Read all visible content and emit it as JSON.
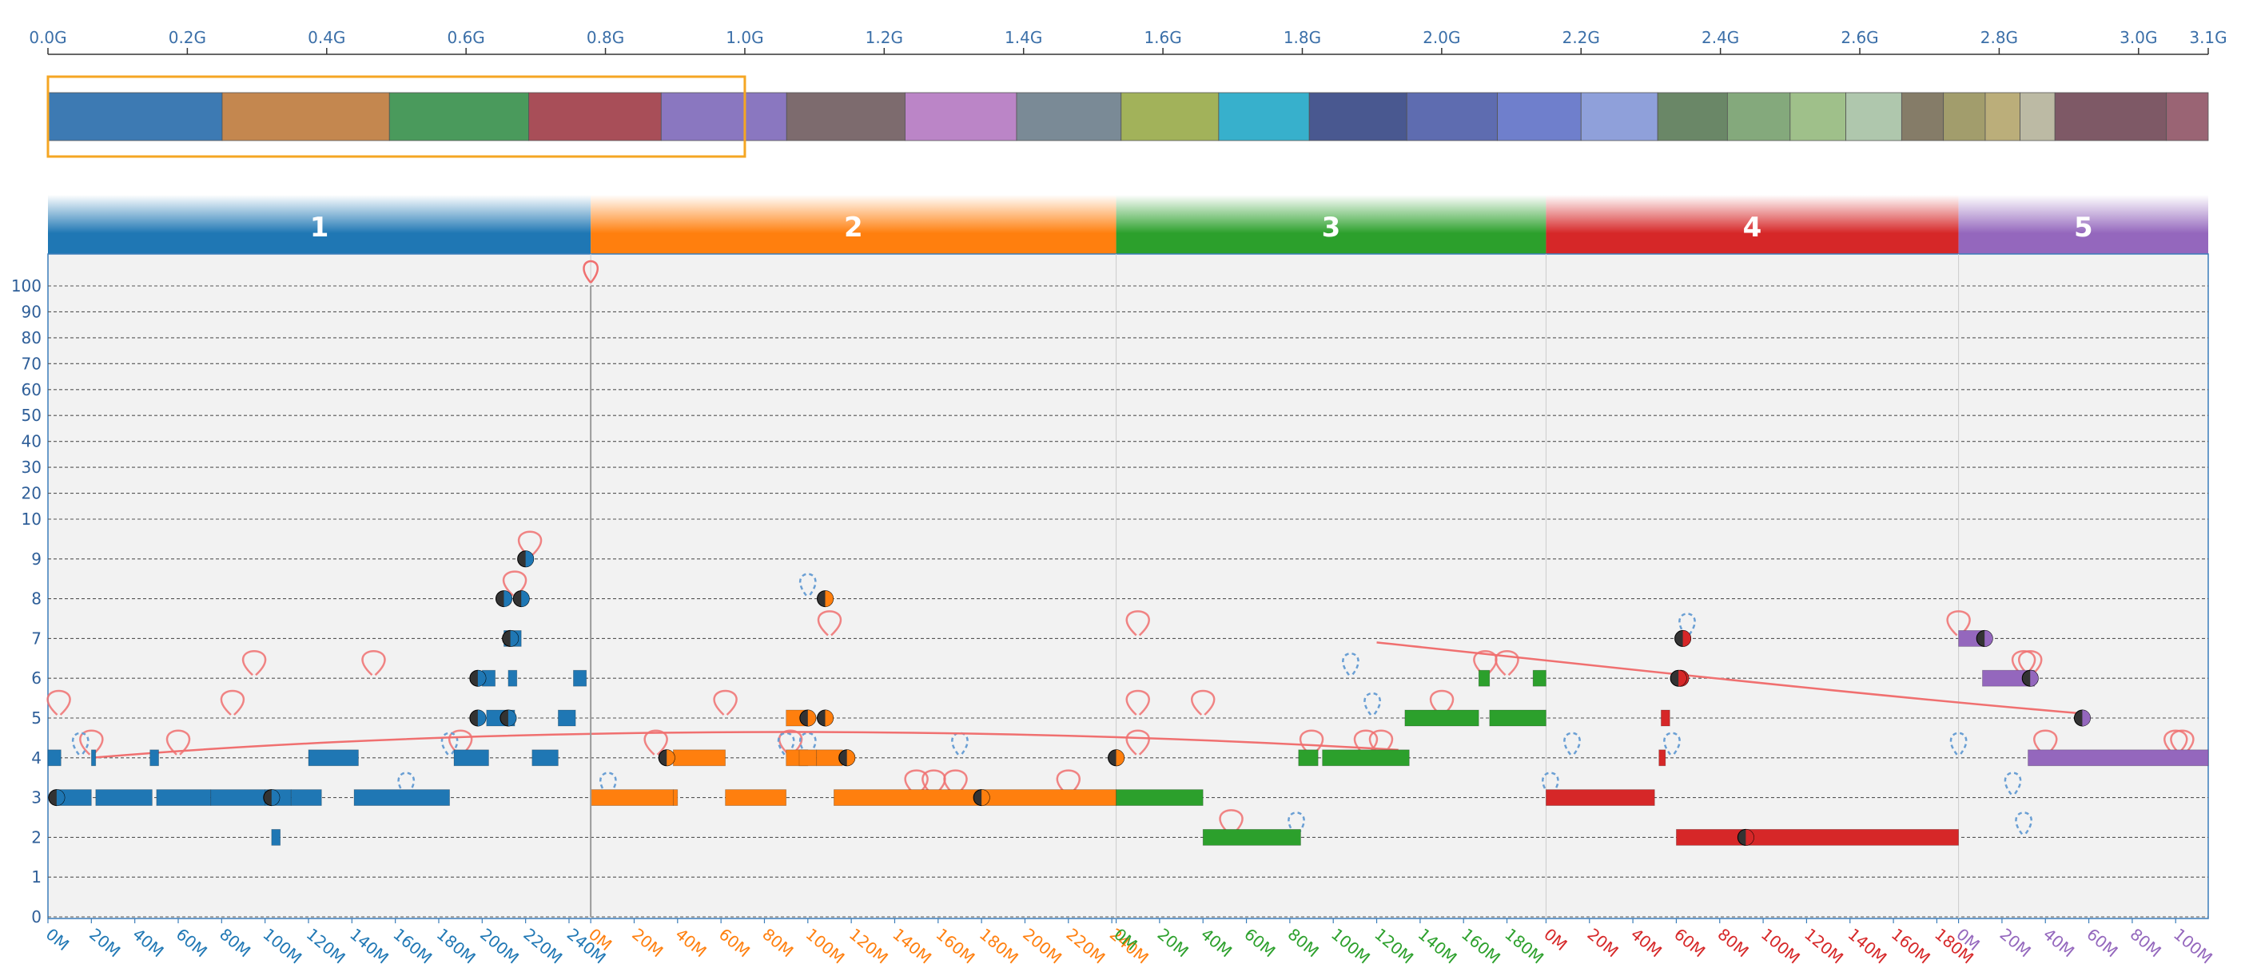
{
  "overview": {
    "ticks": [
      "0.0G",
      "0.2G",
      "0.4G",
      "0.6G",
      "0.8G",
      "1.0G",
      "1.2G",
      "1.4G",
      "1.6G",
      "1.8G",
      "2.0G",
      "2.2G",
      "2.4G",
      "2.6G",
      "2.8G",
      "3.0G",
      "3.1G"
    ],
    "tick_values": [
      0.0,
      0.2,
      0.4,
      0.6,
      0.8,
      1.0,
      1.2,
      1.4,
      1.6,
      1.8,
      2.0,
      2.2,
      2.4,
      2.6,
      2.8,
      3.0,
      3.1
    ],
    "axis_max_g": 3.1,
    "selection_g": [
      0.0,
      1.0
    ],
    "selection_color": "#f5a623",
    "blocks_g": [
      [
        0.0,
        0.25,
        "#3d7ab3"
      ],
      [
        0.25,
        0.49,
        "#c4874f"
      ],
      [
        0.49,
        0.69,
        "#4a9a5c"
      ],
      [
        0.69,
        0.88,
        "#a84e58"
      ],
      [
        0.88,
        1.06,
        "#8a77c0"
      ],
      [
        1.06,
        1.23,
        "#7d6b6e"
      ],
      [
        1.23,
        1.39,
        "#bb85c7"
      ],
      [
        1.39,
        1.54,
        "#7a8a96"
      ],
      [
        1.54,
        1.68,
        "#a2b25a"
      ],
      [
        1.68,
        1.81,
        "#37b0cc"
      ],
      [
        1.81,
        1.95,
        "#495890"
      ],
      [
        1.95,
        2.08,
        "#5e6cb0"
      ],
      [
        2.08,
        2.2,
        "#6f7fcc"
      ],
      [
        2.2,
        2.31,
        "#8fa0da"
      ],
      [
        2.31,
        2.41,
        "#6a8767"
      ],
      [
        2.41,
        2.5,
        "#84a97c"
      ],
      [
        2.5,
        2.58,
        "#9fc08a"
      ],
      [
        2.58,
        2.66,
        "#afc7ad"
      ],
      [
        2.66,
        2.72,
        "#857c68"
      ],
      [
        2.72,
        2.78,
        "#a29d6c"
      ],
      [
        2.78,
        2.83,
        "#bbae7a"
      ],
      [
        2.83,
        2.88,
        "#bcbaa4"
      ],
      [
        2.88,
        3.04,
        "#7e5966"
      ],
      [
        3.04,
        3.1,
        "#9a6474"
      ]
    ]
  },
  "chromosomes": [
    {
      "label": "1",
      "color": "#1f77b4",
      "length_m": 250,
      "ticks": [
        "0M",
        "20M",
        "40M",
        "60M",
        "80M",
        "100M",
        "120M",
        "140M",
        "160M",
        "180M",
        "200M",
        "220M",
        "240M"
      ]
    },
    {
      "label": "2",
      "color": "#ff7f0e",
      "length_m": 242,
      "ticks": [
        "0M",
        "20M",
        "40M",
        "60M",
        "80M",
        "100M",
        "120M",
        "140M",
        "160M",
        "180M",
        "200M",
        "220M",
        "240M"
      ]
    },
    {
      "label": "3",
      "color": "#2ca02c",
      "length_m": 198,
      "ticks": [
        "0M",
        "20M",
        "40M",
        "60M",
        "80M",
        "100M",
        "120M",
        "140M",
        "160M",
        "180M"
      ]
    },
    {
      "label": "4",
      "color": "#d62728",
      "length_m": 190,
      "ticks": [
        "0M",
        "20M",
        "40M",
        "60M",
        "80M",
        "100M",
        "120M",
        "140M",
        "160M",
        "180M"
      ]
    },
    {
      "label": "5",
      "color": "#9467bd",
      "length_m": 115,
      "ticks": [
        "0M",
        "20M",
        "40M",
        "60M",
        "80M",
        "100M"
      ]
    }
  ],
  "chart_data": {
    "type": "scatter",
    "description_type": "copy-number segments with structural variant arcs",
    "y_ticks": [
      "0",
      "1",
      "2",
      "3",
      "4",
      "5",
      "6",
      "7",
      "8",
      "9",
      "10",
      "20",
      "30",
      "40",
      "50",
      "60",
      "70",
      "80",
      "90",
      "100"
    ],
    "y_scale": "linear 0-9, log-like 10-100",
    "x_axis": "genomic position per chromosome (Mb)",
    "grid": true,
    "segments": [
      {
        "chr": 0,
        "start": 0,
        "end": 6,
        "cn": 4
      },
      {
        "chr": 0,
        "start": 20,
        "end": 22,
        "cn": 4
      },
      {
        "chr": 0,
        "start": 4,
        "end": 20,
        "cn": 3
      },
      {
        "chr": 0,
        "start": 22,
        "end": 48,
        "cn": 3
      },
      {
        "chr": 0,
        "start": 47,
        "end": 51,
        "cn": 4
      },
      {
        "chr": 0,
        "start": 50,
        "end": 75,
        "cn": 3
      },
      {
        "chr": 0,
        "start": 75,
        "end": 100,
        "cn": 3
      },
      {
        "chr": 0,
        "start": 100,
        "end": 112,
        "cn": 3
      },
      {
        "chr": 0,
        "start": 103,
        "end": 107,
        "cn": 2
      },
      {
        "chr": 0,
        "start": 112,
        "end": 126,
        "cn": 3
      },
      {
        "chr": 0,
        "start": 120,
        "end": 143,
        "cn": 4
      },
      {
        "chr": 0,
        "start": 141,
        "end": 185,
        "cn": 3
      },
      {
        "chr": 0,
        "start": 187,
        "end": 203,
        "cn": 4
      },
      {
        "chr": 0,
        "start": 202,
        "end": 215,
        "cn": 5
      },
      {
        "chr": 0,
        "start": 200,
        "end": 206,
        "cn": 6
      },
      {
        "chr": 0,
        "start": 212,
        "end": 216,
        "cn": 6
      },
      {
        "chr": 0,
        "start": 210,
        "end": 218,
        "cn": 7
      },
      {
        "chr": 0,
        "start": 223,
        "end": 235,
        "cn": 4
      },
      {
        "chr": 0,
        "start": 235,
        "end": 243,
        "cn": 5
      },
      {
        "chr": 0,
        "start": 242,
        "end": 248,
        "cn": 6
      },
      {
        "chr": 1,
        "start": 0,
        "end": 38,
        "cn": 3
      },
      {
        "chr": 1,
        "start": 38,
        "end": 40,
        "cn": 3
      },
      {
        "chr": 1,
        "start": 38,
        "end": 62,
        "cn": 4
      },
      {
        "chr": 1,
        "start": 62,
        "end": 90,
        "cn": 3
      },
      {
        "chr": 1,
        "start": 90,
        "end": 100,
        "cn": 4
      },
      {
        "chr": 1,
        "start": 90,
        "end": 100,
        "cn": 5
      },
      {
        "chr": 1,
        "start": 96,
        "end": 104,
        "cn": 4
      },
      {
        "chr": 1,
        "start": 104,
        "end": 116,
        "cn": 4
      },
      {
        "chr": 1,
        "start": 112,
        "end": 242,
        "cn": 3
      },
      {
        "chr": 2,
        "start": 0,
        "end": 40,
        "cn": 3
      },
      {
        "chr": 2,
        "start": 40,
        "end": 85,
        "cn": 2
      },
      {
        "chr": 2,
        "start": 84,
        "end": 93,
        "cn": 4
      },
      {
        "chr": 2,
        "start": 95,
        "end": 135,
        "cn": 4
      },
      {
        "chr": 2,
        "start": 133,
        "end": 167,
        "cn": 5
      },
      {
        "chr": 2,
        "start": 167,
        "end": 172,
        "cn": 6
      },
      {
        "chr": 2,
        "start": 172,
        "end": 198,
        "cn": 5
      },
      {
        "chr": 2,
        "start": 192,
        "end": 198,
        "cn": 6
      },
      {
        "chr": 3,
        "start": 0,
        "end": 50,
        "cn": 3
      },
      {
        "chr": 3,
        "start": 52,
        "end": 55,
        "cn": 4
      },
      {
        "chr": 3,
        "start": 53,
        "end": 57,
        "cn": 5
      },
      {
        "chr": 3,
        "start": 60,
        "end": 190,
        "cn": 2
      },
      {
        "chr": 4,
        "start": 0,
        "end": 12,
        "cn": 7
      },
      {
        "chr": 4,
        "start": 11,
        "end": 35,
        "cn": 6
      },
      {
        "chr": 4,
        "start": 32,
        "end": 115,
        "cn": 4
      }
    ],
    "breakpoints": [
      {
        "chr": 0,
        "pos": 4,
        "cn": 3
      },
      {
        "chr": 0,
        "pos": 103,
        "cn": 3
      },
      {
        "chr": 0,
        "pos": 198,
        "cn": 5
      },
      {
        "chr": 0,
        "pos": 198,
        "cn": 6
      },
      {
        "chr": 0,
        "pos": 213,
        "cn": 7
      },
      {
        "chr": 0,
        "pos": 210,
        "cn": 8
      },
      {
        "chr": 0,
        "pos": 218,
        "cn": 8
      },
      {
        "chr": 0,
        "pos": 220,
        "cn": 9
      },
      {
        "chr": 0,
        "pos": 212,
        "cn": 5
      },
      {
        "chr": 1,
        "pos": 35,
        "cn": 4
      },
      {
        "chr": 1,
        "pos": 108,
        "cn": 8
      },
      {
        "chr": 1,
        "pos": 100,
        "cn": 5
      },
      {
        "chr": 1,
        "pos": 108,
        "cn": 5
      },
      {
        "chr": 1,
        "pos": 118,
        "cn": 4
      },
      {
        "chr": 1,
        "pos": 180,
        "cn": 3
      },
      {
        "chr": 1,
        "pos": 242,
        "cn": 4
      },
      {
        "chr": 3,
        "pos": 62,
        "cn": 6
      },
      {
        "chr": 3,
        "pos": 63,
        "cn": 7
      },
      {
        "chr": 3,
        "pos": 61,
        "cn": 6
      },
      {
        "chr": 3,
        "pos": 92,
        "cn": 2
      },
      {
        "chr": 4,
        "pos": 12,
        "cn": 7
      },
      {
        "chr": 4,
        "pos": 33,
        "cn": 6
      },
      {
        "chr": 4,
        "pos": 57,
        "cn": 5
      }
    ],
    "spikes": [
      {
        "chr": 1,
        "pos": 0,
        "cn": 100
      }
    ],
    "colors": {
      "background": "#f2f2f2",
      "sv_arc": "#f07070",
      "sv_dashed": "#6a9fd4",
      "grid": "#555555",
      "axis": "#3b7dba",
      "overview_selection": "#f5a623"
    }
  }
}
